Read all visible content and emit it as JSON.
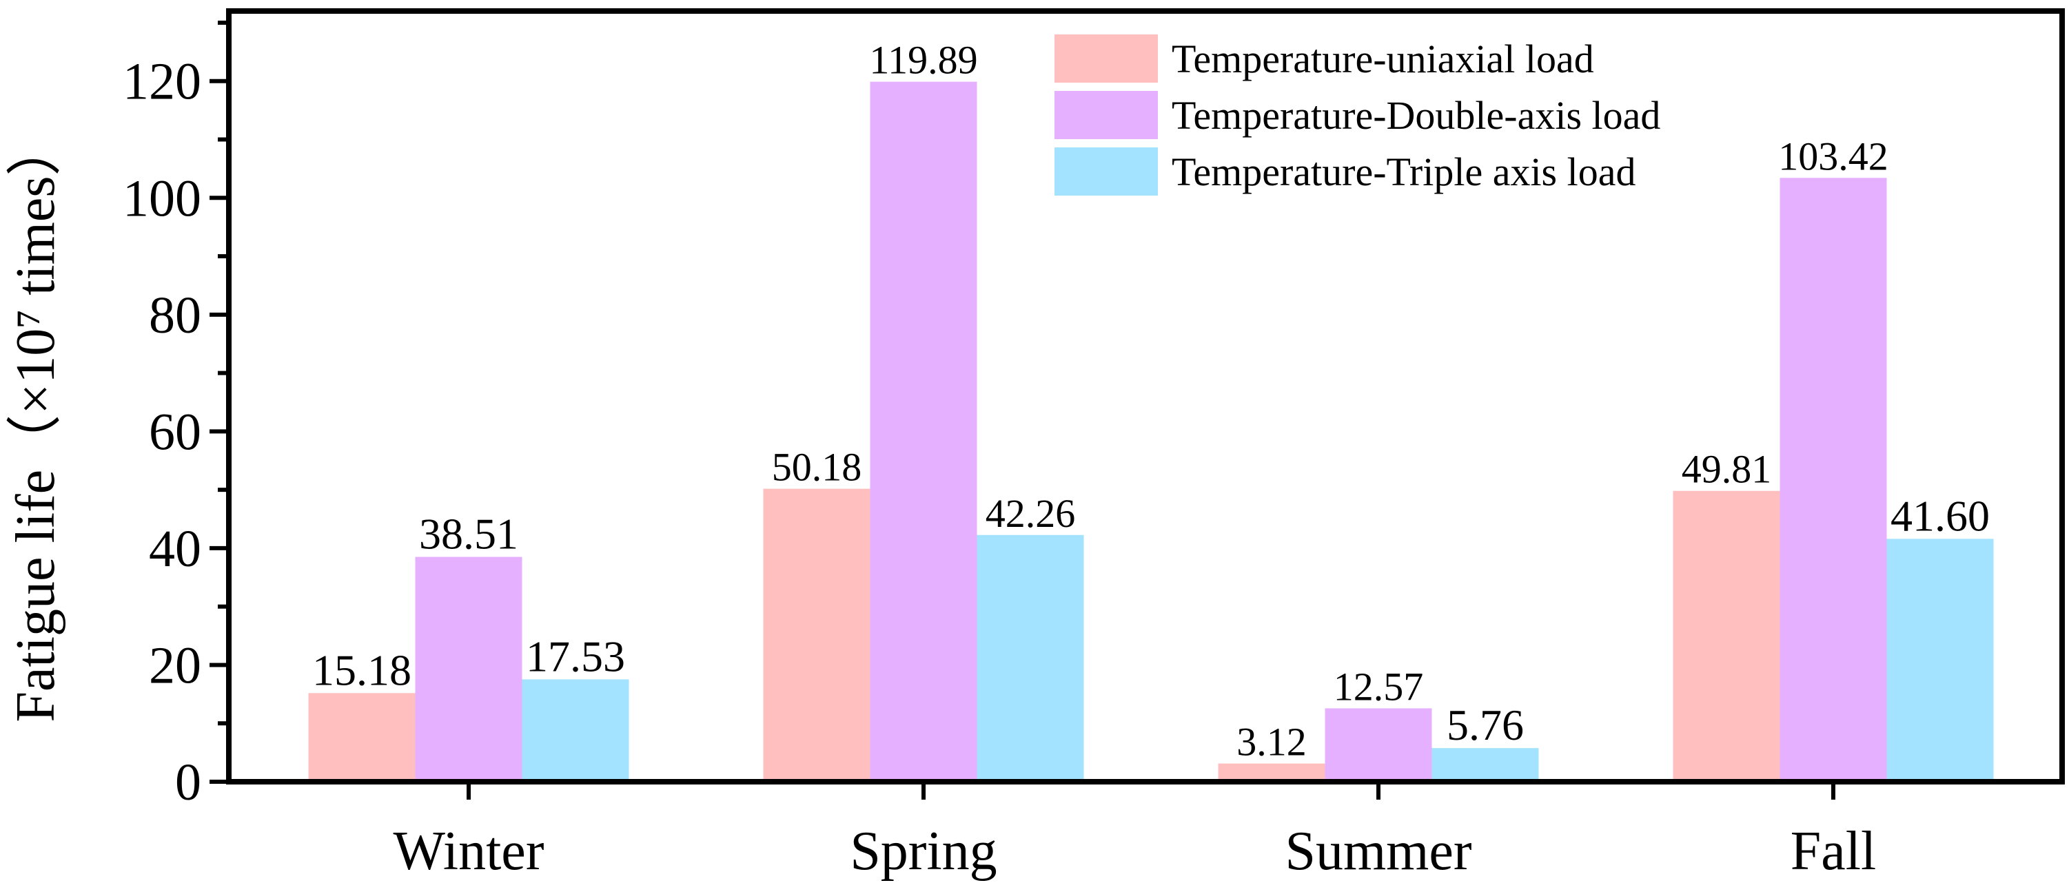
{
  "chart_data": {
    "type": "bar",
    "title": "",
    "xlabel": "",
    "ylabel": "Fatigue life（×10⁷ times）",
    "ylim": [
      0,
      132
    ],
    "yticks": [
      0,
      20,
      40,
      60,
      80,
      100,
      120
    ],
    "categories": [
      "Winter",
      "Spring",
      "Summer",
      "Fall"
    ],
    "series": [
      {
        "name": "Temperature-uniaxial load",
        "color": "#FFBFBF",
        "values": [
          15.18,
          50.18,
          3.12,
          49.81
        ],
        "labels": [
          "15.18",
          "50.18",
          "3.12",
          "49.81"
        ]
      },
      {
        "name": "Temperature-Double-axis load",
        "color": "#E5B0FF",
        "values": [
          38.51,
          119.89,
          12.57,
          103.42
        ],
        "labels": [
          "38.51",
          "119.89",
          "12.57",
          "103.42"
        ]
      },
      {
        "name": "Temperature-Triple axis load",
        "color": "#A3E3FF",
        "values": [
          17.53,
          42.26,
          5.76,
          41.6
        ],
        "labels": [
          "17.53",
          "42.26",
          "5.76",
          "41.60"
        ]
      }
    ],
    "legend_position": "top-right",
    "grid": false
  }
}
